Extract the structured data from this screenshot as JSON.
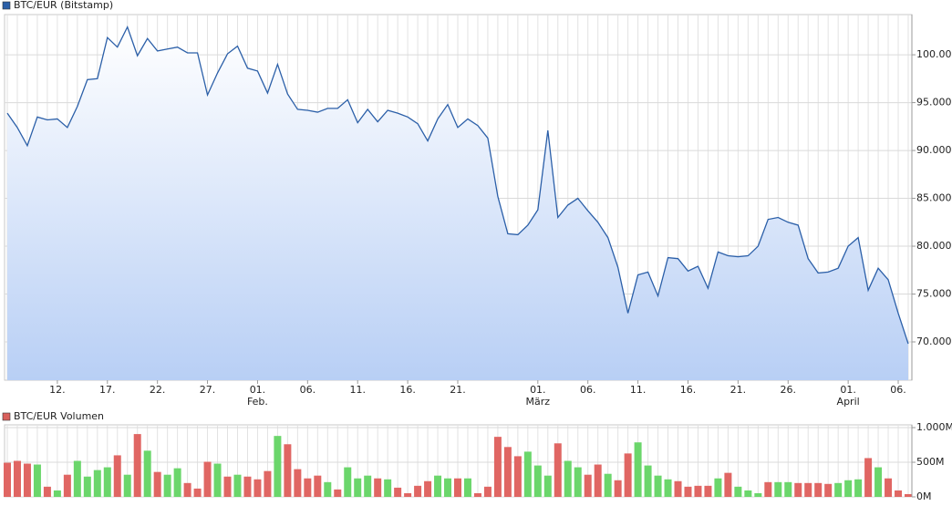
{
  "chart_data": [
    {
      "type": "area",
      "x": [
        "01-07",
        "01-08",
        "01-09",
        "01-10",
        "01-11",
        "01-12",
        "01-13",
        "01-14",
        "01-15",
        "01-16",
        "01-17",
        "01-18",
        "01-19",
        "01-20",
        "01-21",
        "01-22",
        "01-23",
        "01-24",
        "01-25",
        "01-26",
        "01-27",
        "01-28",
        "01-29",
        "01-30",
        "01-31",
        "02-01",
        "02-02",
        "02-03",
        "02-04",
        "02-05",
        "02-06",
        "02-07",
        "02-08",
        "02-09",
        "02-10",
        "02-11",
        "02-12",
        "02-13",
        "02-14",
        "02-15",
        "02-16",
        "02-17",
        "02-18",
        "02-19",
        "02-20",
        "02-21",
        "02-22",
        "02-23",
        "02-24",
        "02-25",
        "02-26",
        "02-27",
        "02-28",
        "03-01",
        "03-02",
        "03-03",
        "03-04",
        "03-05",
        "03-06",
        "03-07",
        "03-08",
        "03-09",
        "03-10",
        "03-11",
        "03-12",
        "03-13",
        "03-14",
        "03-15",
        "03-16",
        "03-17",
        "03-18",
        "03-19",
        "03-20",
        "03-21",
        "03-22",
        "03-23",
        "03-24",
        "03-25",
        "03-26",
        "03-27",
        "03-28",
        "03-29",
        "03-30",
        "03-31",
        "04-01",
        "04-02",
        "04-03",
        "04-04",
        "04-05",
        "04-06",
        "04-07"
      ],
      "series": [
        {
          "name": "BTC/EUR (Bitstamp)",
          "color": "#2b5fa8",
          "values": [
            93900,
            92400,
            90500,
            93500,
            93200,
            93300,
            92400,
            94600,
            97400,
            97500,
            101800,
            100800,
            102900,
            99900,
            101700,
            100400,
            100600,
            100800,
            100200,
            100200,
            95800,
            98100,
            100100,
            100900,
            98600,
            98300,
            96000,
            99000,
            95900,
            94300,
            94200,
            94000,
            94400,
            94400,
            95300,
            92900,
            94300,
            93000,
            94200,
            93900,
            93500,
            92800,
            91000,
            93300,
            94800,
            92400,
            93300,
            92600,
            91300,
            85200,
            81300,
            81200,
            82200,
            83800,
            92100,
            83000,
            84300,
            85000,
            83700,
            82500,
            80900,
            77800,
            73000,
            77000,
            77300,
            74800,
            78800,
            78700,
            77400,
            77900,
            75600,
            79400,
            79000,
            78900,
            79000,
            80000,
            82800,
            83000,
            82500,
            82200,
            78700,
            77200,
            77300,
            77700,
            80000,
            80900,
            75400,
            77700,
            76500,
            73000,
            69800
          ]
        }
      ],
      "ylim": [
        66000,
        104200
      ],
      "yticks": [
        {
          "value": 70000,
          "label": "70.000"
        },
        {
          "value": 75000,
          "label": "75.000"
        },
        {
          "value": 80000,
          "label": "80.000"
        },
        {
          "value": 85000,
          "label": "85.000"
        },
        {
          "value": 90000,
          "label": "90.000"
        },
        {
          "value": 95000,
          "label": "95.000"
        },
        {
          "value": 100000,
          "label": "100.000"
        }
      ],
      "xticks": [
        {
          "value": "01-12",
          "label": "12."
        },
        {
          "value": "01-17",
          "label": "17."
        },
        {
          "value": "01-22",
          "label": "22."
        },
        {
          "value": "01-27",
          "label": "27."
        },
        {
          "value": "02-01",
          "label": "01."
        },
        {
          "value": "02-06",
          "label": "06."
        },
        {
          "value": "02-11",
          "label": "11."
        },
        {
          "value": "02-16",
          "label": "16."
        },
        {
          "value": "02-21",
          "label": "21."
        },
        {
          "value": "03-01",
          "label": "01."
        },
        {
          "value": "03-06",
          "label": "06."
        },
        {
          "value": "03-11",
          "label": "11."
        },
        {
          "value": "03-16",
          "label": "16."
        },
        {
          "value": "03-21",
          "label": "21."
        },
        {
          "value": "03-26",
          "label": "26."
        },
        {
          "value": "04-01",
          "label": "01."
        },
        {
          "value": "04-06",
          "label": "06."
        }
      ],
      "month_labels": [
        {
          "value": "02-01",
          "label": "Feb."
        },
        {
          "value": "03-01",
          "label": "März"
        },
        {
          "value": "04-01",
          "label": "April"
        }
      ],
      "grid": true
    },
    {
      "type": "bar",
      "x": [
        "01-07",
        "01-08",
        "01-09",
        "01-10",
        "01-11",
        "01-12",
        "01-13",
        "01-14",
        "01-15",
        "01-16",
        "01-17",
        "01-18",
        "01-19",
        "01-20",
        "01-21",
        "01-22",
        "01-23",
        "01-24",
        "01-25",
        "01-26",
        "01-27",
        "01-28",
        "01-29",
        "01-30",
        "01-31",
        "02-01",
        "02-02",
        "02-03",
        "02-04",
        "02-05",
        "02-06",
        "02-07",
        "02-08",
        "02-09",
        "02-10",
        "02-11",
        "02-12",
        "02-13",
        "02-14",
        "02-15",
        "02-16",
        "02-17",
        "02-18",
        "02-19",
        "02-20",
        "02-21",
        "02-22",
        "02-23",
        "02-24",
        "02-25",
        "02-26",
        "02-27",
        "02-28",
        "03-01",
        "03-02",
        "03-03",
        "03-04",
        "03-05",
        "03-06",
        "03-07",
        "03-08",
        "03-09",
        "03-10",
        "03-11",
        "03-12",
        "03-13",
        "03-14",
        "03-15",
        "03-16",
        "03-17",
        "03-18",
        "03-19",
        "03-20",
        "03-21",
        "03-22",
        "03-23",
        "03-24",
        "03-25",
        "03-26",
        "03-27",
        "03-28",
        "03-29",
        "03-30",
        "03-31",
        "04-01",
        "04-02",
        "04-03",
        "04-04",
        "04-05",
        "04-06",
        "04-07"
      ],
      "series": [
        {
          "name": "BTC/EUR Volumen",
          "color": "#d9605c",
          "values": [
            493,
            520,
            480,
            467,
            147,
            93,
            320,
            520,
            293,
            387,
            427,
            600,
            320,
            907,
            667,
            360,
            320,
            413,
            200,
            120,
            507,
            480,
            293,
            320,
            293,
            253,
            373,
            880,
            760,
            400,
            267,
            307,
            213,
            107,
            427,
            267,
            307,
            267,
            253,
            133,
            53,
            160,
            227,
            307,
            267,
            267,
            267,
            53,
            147,
            867,
            720,
            587,
            653,
            453,
            307,
            773,
            520,
            427,
            320,
            467,
            333,
            240,
            627,
            787,
            453,
            307,
            253,
            227,
            147,
            160,
            160,
            267,
            347,
            147,
            93,
            53,
            213,
            213,
            213,
            200,
            200,
            200,
            187,
            200,
            240,
            253,
            560,
            427,
            267,
            93,
            40
          ],
          "colors": [
            "#e06663",
            "#e06663",
            "#e06663",
            "#6bd66b",
            "#e06663",
            "#6bd66b",
            "#e06663",
            "#6bd66b",
            "#6bd66b",
            "#6bd66b",
            "#6bd66b",
            "#e06663",
            "#6bd66b",
            "#e06663",
            "#6bd66b",
            "#e06663",
            "#6bd66b",
            "#6bd66b",
            "#e06663",
            "#e06663",
            "#e06663",
            "#6bd66b",
            "#e06663",
            "#6bd66b",
            "#e06663",
            "#e06663",
            "#e06663",
            "#6bd66b",
            "#e06663",
            "#e06663",
            "#e06663",
            "#e06663",
            "#6bd66b",
            "#e06663",
            "#6bd66b",
            "#6bd66b",
            "#6bd66b",
            "#e06663",
            "#6bd66b",
            "#e06663",
            "#e06663",
            "#e06663",
            "#e06663",
            "#6bd66b",
            "#6bd66b",
            "#e06663",
            "#6bd66b",
            "#e06663",
            "#e06663",
            "#e06663",
            "#e06663",
            "#e06663",
            "#6bd66b",
            "#6bd66b",
            "#6bd66b",
            "#e06663",
            "#6bd66b",
            "#6bd66b",
            "#e06663",
            "#e06663",
            "#6bd66b",
            "#e06663",
            "#e06663",
            "#6bd66b",
            "#6bd66b",
            "#6bd66b",
            "#6bd66b",
            "#e06663",
            "#e06663",
            "#e06663",
            "#e06663",
            "#6bd66b",
            "#e06663",
            "#6bd66b",
            "#6bd66b",
            "#6bd66b",
            "#e06663",
            "#6bd66b",
            "#6bd66b",
            "#e06663",
            "#e06663",
            "#e06663",
            "#e06663",
            "#6bd66b",
            "#6bd66b",
            "#6bd66b",
            "#e06663",
            "#6bd66b",
            "#e06663",
            "#e06663",
            "#e06663"
          ]
        }
      ],
      "ylim": [
        0,
        1040
      ],
      "yticks": [
        {
          "value": 0,
          "label": "0M"
        },
        {
          "value": 500,
          "label": "500M"
        },
        {
          "value": 1000,
          "label": "1.000M"
        }
      ],
      "grid": true
    }
  ]
}
